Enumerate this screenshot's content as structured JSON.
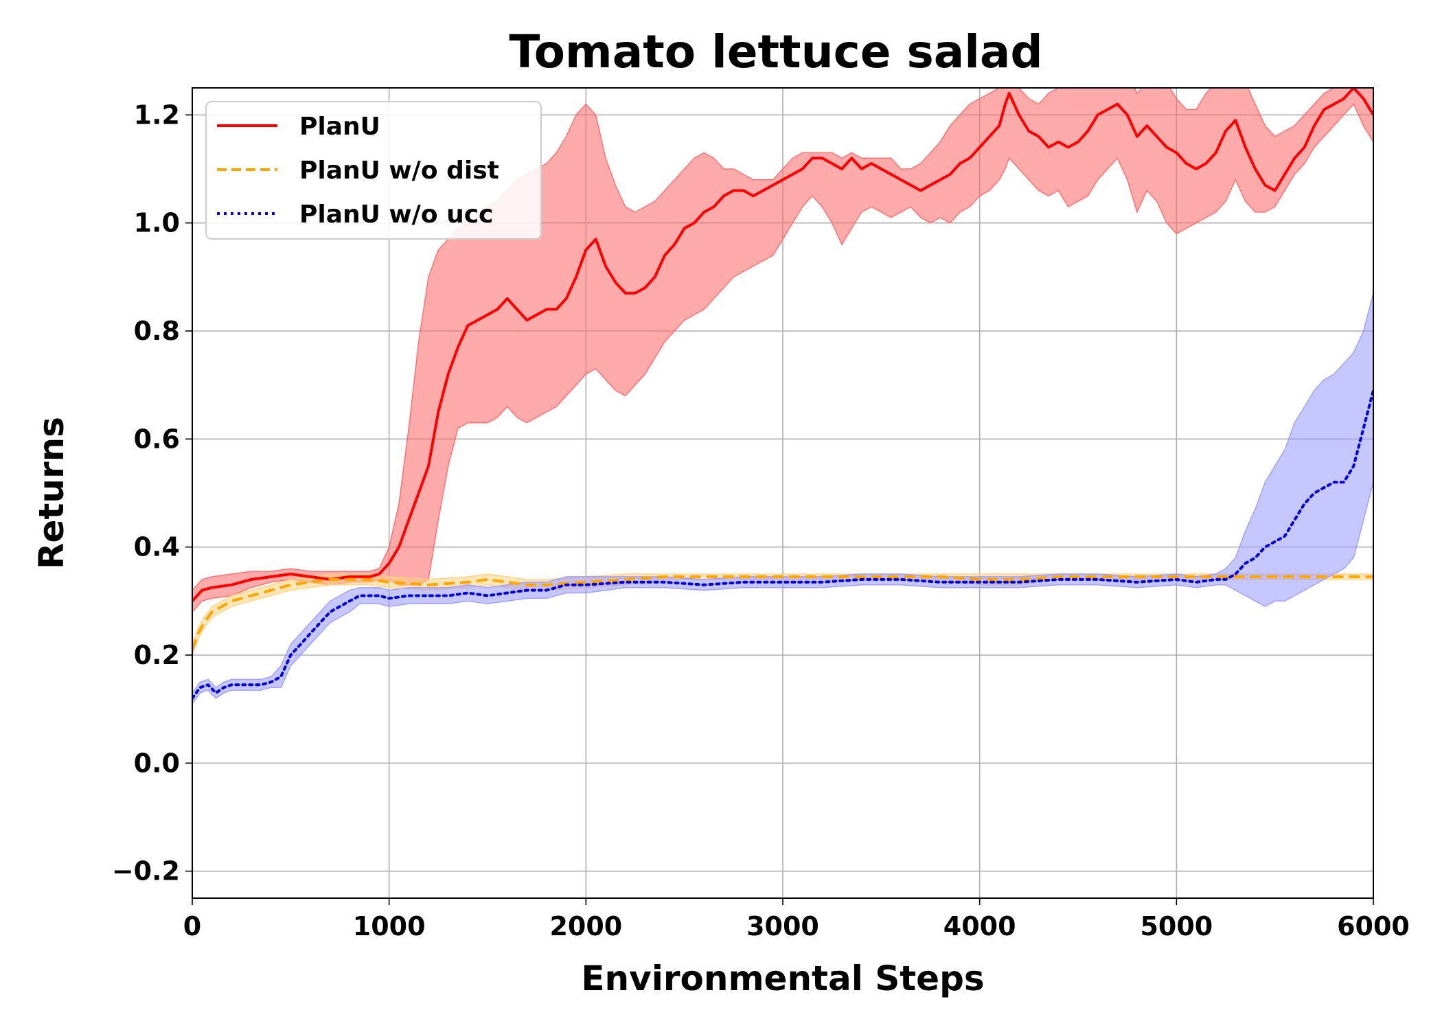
{
  "chart_data": {
    "type": "line",
    "title": "Tomato lettuce salad",
    "xlabel": "Environmental Steps",
    "ylabel": "Returns",
    "xlim": [
      0,
      6000
    ],
    "ylim": [
      -0.25,
      1.25
    ],
    "xticks": [
      0,
      1000,
      2000,
      3000,
      4000,
      5000,
      6000
    ],
    "xtick_labels": [
      "0",
      "1000",
      "2000",
      "3000",
      "4000",
      "5000",
      "6000"
    ],
    "yticks": [
      -0.2,
      0.0,
      0.2,
      0.4,
      0.6,
      0.8,
      1.0,
      1.2
    ],
    "ytick_labels": [
      "−0.2",
      "0.0",
      "0.2",
      "0.4",
      "0.6",
      "0.8",
      "1.0",
      "1.2"
    ],
    "grid": true,
    "legend_position": "top-left",
    "series": [
      {
        "name": "PlanU",
        "color": "#ff0000",
        "fill_color": "#ff6666",
        "style": "solid",
        "x": [
          0,
          50,
          100,
          200,
          300,
          400,
          500,
          600,
          700,
          800,
          900,
          950,
          1000,
          1050,
          1100,
          1150,
          1200,
          1250,
          1300,
          1350,
          1400,
          1450,
          1500,
          1550,
          1600,
          1650,
          1700,
          1750,
          1800,
          1850,
          1900,
          1950,
          2000,
          2050,
          2100,
          2150,
          2200,
          2250,
          2300,
          2350,
          2400,
          2450,
          2500,
          2550,
          2600,
          2650,
          2700,
          2750,
          2800,
          2850,
          2900,
          2950,
          3000,
          3050,
          3100,
          3150,
          3200,
          3250,
          3300,
          3350,
          3400,
          3450,
          3500,
          3550,
          3600,
          3650,
          3700,
          3750,
          3800,
          3850,
          3900,
          3950,
          4000,
          4050,
          4100,
          4130,
          4150,
          4200,
          4250,
          4300,
          4350,
          4400,
          4450,
          4500,
          4550,
          4600,
          4650,
          4700,
          4750,
          4800,
          4850,
          4900,
          4950,
          5000,
          5050,
          5100,
          5150,
          5200,
          5250,
          5300,
          5350,
          5400,
          5450,
          5500,
          5550,
          5600,
          5650,
          5700,
          5750,
          5800,
          5850,
          5900,
          5950,
          6000
        ],
        "y": [
          0.3,
          0.32,
          0.325,
          0.33,
          0.34,
          0.345,
          0.35,
          0.345,
          0.34,
          0.345,
          0.345,
          0.35,
          0.37,
          0.4,
          0.45,
          0.5,
          0.55,
          0.65,
          0.72,
          0.77,
          0.81,
          0.82,
          0.83,
          0.84,
          0.86,
          0.84,
          0.82,
          0.83,
          0.84,
          0.84,
          0.86,
          0.9,
          0.95,
          0.97,
          0.92,
          0.89,
          0.87,
          0.87,
          0.88,
          0.9,
          0.94,
          0.96,
          0.99,
          1.0,
          1.02,
          1.03,
          1.05,
          1.06,
          1.06,
          1.05,
          1.06,
          1.07,
          1.08,
          1.09,
          1.1,
          1.12,
          1.12,
          1.11,
          1.1,
          1.12,
          1.1,
          1.11,
          1.1,
          1.09,
          1.08,
          1.07,
          1.06,
          1.07,
          1.08,
          1.09,
          1.11,
          1.12,
          1.14,
          1.16,
          1.18,
          1.22,
          1.24,
          1.2,
          1.17,
          1.16,
          1.14,
          1.15,
          1.14,
          1.15,
          1.17,
          1.2,
          1.21,
          1.22,
          1.2,
          1.16,
          1.18,
          1.16,
          1.14,
          1.13,
          1.11,
          1.1,
          1.11,
          1.13,
          1.17,
          1.19,
          1.14,
          1.1,
          1.07,
          1.06,
          1.09,
          1.12,
          1.14,
          1.18,
          1.21,
          1.22,
          1.23,
          1.25,
          1.23,
          1.2
        ],
        "upper": [
          0.32,
          0.34,
          0.345,
          0.35,
          0.355,
          0.355,
          0.36,
          0.355,
          0.355,
          0.355,
          0.355,
          0.36,
          0.4,
          0.48,
          0.62,
          0.78,
          0.9,
          0.95,
          0.97,
          0.99,
          1.0,
          1.01,
          1.03,
          1.04,
          1.06,
          1.08,
          1.09,
          1.1,
          1.11,
          1.13,
          1.16,
          1.2,
          1.22,
          1.2,
          1.12,
          1.07,
          1.03,
          1.02,
          1.03,
          1.04,
          1.06,
          1.08,
          1.1,
          1.12,
          1.13,
          1.12,
          1.1,
          1.1,
          1.09,
          1.08,
          1.08,
          1.08,
          1.1,
          1.12,
          1.13,
          1.13,
          1.13,
          1.13,
          1.12,
          1.13,
          1.12,
          1.12,
          1.12,
          1.12,
          1.1,
          1.1,
          1.11,
          1.13,
          1.15,
          1.18,
          1.2,
          1.22,
          1.23,
          1.24,
          1.25,
          1.26,
          1.26,
          1.25,
          1.23,
          1.22,
          1.24,
          1.25,
          1.26,
          1.26,
          1.27,
          1.28,
          1.29,
          1.3,
          1.28,
          1.24,
          1.26,
          1.28,
          1.26,
          1.23,
          1.21,
          1.21,
          1.24,
          1.26,
          1.28,
          1.29,
          1.26,
          1.22,
          1.18,
          1.16,
          1.17,
          1.18,
          1.2,
          1.22,
          1.24,
          1.25,
          1.26,
          1.27,
          1.27,
          1.26
        ],
        "lower": [
          0.28,
          0.3,
          0.305,
          0.31,
          0.325,
          0.335,
          0.34,
          0.335,
          0.33,
          0.335,
          0.335,
          0.34,
          0.34,
          0.33,
          0.33,
          0.33,
          0.34,
          0.45,
          0.55,
          0.62,
          0.63,
          0.63,
          0.63,
          0.64,
          0.66,
          0.64,
          0.63,
          0.64,
          0.65,
          0.66,
          0.68,
          0.7,
          0.72,
          0.73,
          0.71,
          0.69,
          0.68,
          0.7,
          0.72,
          0.75,
          0.78,
          0.8,
          0.82,
          0.83,
          0.84,
          0.86,
          0.88,
          0.9,
          0.91,
          0.92,
          0.93,
          0.94,
          0.97,
          1.0,
          1.03,
          1.05,
          1.03,
          1.0,
          0.96,
          0.99,
          1.02,
          1.03,
          1.02,
          1.01,
          1.02,
          1.03,
          1.01,
          1.0,
          1.01,
          1.0,
          1.02,
          1.03,
          1.05,
          1.06,
          1.08,
          1.1,
          1.12,
          1.1,
          1.08,
          1.06,
          1.05,
          1.06,
          1.03,
          1.04,
          1.05,
          1.08,
          1.1,
          1.12,
          1.08,
          1.02,
          1.06,
          1.04,
          1.0,
          0.98,
          0.99,
          1.0,
          1.01,
          1.02,
          1.04,
          1.08,
          1.04,
          1.02,
          1.02,
          1.03,
          1.06,
          1.09,
          1.11,
          1.14,
          1.16,
          1.18,
          1.2,
          1.22,
          1.18,
          1.15
        ]
      },
      {
        "name": "PlanU w/o dist",
        "color": "#ffa500",
        "fill_color": "#ffd27f",
        "style": "dashed",
        "x": [
          0,
          30,
          60,
          100,
          150,
          200,
          250,
          300,
          400,
          500,
          600,
          700,
          800,
          900,
          1000,
          1200,
          1400,
          1500,
          1600,
          1700,
          1800,
          2000,
          2200,
          2400,
          2600,
          2800,
          3000,
          3200,
          3400,
          3600,
          3800,
          4000,
          4200,
          4400,
          4600,
          4800,
          5000,
          5200,
          5400,
          5600,
          5800,
          6000
        ],
        "y": [
          0.21,
          0.24,
          0.26,
          0.28,
          0.29,
          0.3,
          0.305,
          0.31,
          0.32,
          0.33,
          0.335,
          0.34,
          0.34,
          0.34,
          0.335,
          0.33,
          0.335,
          0.34,
          0.335,
          0.33,
          0.33,
          0.335,
          0.34,
          0.345,
          0.345,
          0.345,
          0.345,
          0.345,
          0.345,
          0.345,
          0.345,
          0.34,
          0.34,
          0.345,
          0.345,
          0.345,
          0.345,
          0.345,
          0.345,
          0.345,
          0.345,
          0.345
        ],
        "upper": [
          0.22,
          0.25,
          0.27,
          0.29,
          0.3,
          0.31,
          0.315,
          0.32,
          0.33,
          0.34,
          0.345,
          0.35,
          0.35,
          0.35,
          0.345,
          0.34,
          0.345,
          0.35,
          0.345,
          0.34,
          0.34,
          0.345,
          0.35,
          0.35,
          0.35,
          0.35,
          0.35,
          0.35,
          0.35,
          0.35,
          0.35,
          0.35,
          0.35,
          0.35,
          0.35,
          0.35,
          0.35,
          0.35,
          0.35,
          0.35,
          0.35,
          0.35
        ],
        "lower": [
          0.2,
          0.23,
          0.25,
          0.27,
          0.28,
          0.29,
          0.295,
          0.3,
          0.31,
          0.32,
          0.325,
          0.33,
          0.33,
          0.33,
          0.325,
          0.32,
          0.325,
          0.33,
          0.325,
          0.32,
          0.32,
          0.325,
          0.33,
          0.34,
          0.34,
          0.34,
          0.34,
          0.34,
          0.34,
          0.34,
          0.34,
          0.33,
          0.33,
          0.34,
          0.34,
          0.34,
          0.34,
          0.34,
          0.34,
          0.34,
          0.34,
          0.34
        ]
      },
      {
        "name": "PlanU w/o ucc",
        "color": "#0000dd",
        "fill_color": "#9999ff",
        "style": "dotted",
        "x": [
          0,
          40,
          80,
          120,
          160,
          200,
          250,
          300,
          350,
          400,
          450,
          500,
          550,
          600,
          650,
          700,
          750,
          800,
          850,
          900,
          950,
          1000,
          1100,
          1200,
          1300,
          1400,
          1500,
          1600,
          1700,
          1800,
          1900,
          2000,
          2200,
          2400,
          2600,
          2800,
          3000,
          3200,
          3400,
          3600,
          3800,
          4000,
          4200,
          4400,
          4600,
          4800,
          5000,
          5100,
          5200,
          5250,
          5300,
          5350,
          5400,
          5450,
          5500,
          5550,
          5600,
          5650,
          5700,
          5750,
          5800,
          5850,
          5900,
          5950,
          6000
        ],
        "y": [
          0.12,
          0.14,
          0.145,
          0.13,
          0.14,
          0.145,
          0.145,
          0.145,
          0.145,
          0.15,
          0.16,
          0.2,
          0.22,
          0.24,
          0.26,
          0.28,
          0.29,
          0.3,
          0.31,
          0.31,
          0.31,
          0.305,
          0.31,
          0.31,
          0.31,
          0.315,
          0.31,
          0.315,
          0.32,
          0.32,
          0.33,
          0.33,
          0.335,
          0.335,
          0.33,
          0.335,
          0.335,
          0.335,
          0.34,
          0.34,
          0.335,
          0.335,
          0.335,
          0.34,
          0.34,
          0.335,
          0.34,
          0.335,
          0.34,
          0.34,
          0.35,
          0.37,
          0.38,
          0.4,
          0.41,
          0.42,
          0.45,
          0.48,
          0.5,
          0.51,
          0.52,
          0.52,
          0.55,
          0.62,
          0.69
        ],
        "upper": [
          0.13,
          0.15,
          0.155,
          0.14,
          0.15,
          0.155,
          0.155,
          0.155,
          0.155,
          0.16,
          0.18,
          0.22,
          0.24,
          0.26,
          0.28,
          0.3,
          0.31,
          0.32,
          0.325,
          0.325,
          0.325,
          0.32,
          0.325,
          0.325,
          0.325,
          0.33,
          0.325,
          0.33,
          0.335,
          0.335,
          0.345,
          0.345,
          0.345,
          0.345,
          0.34,
          0.345,
          0.345,
          0.345,
          0.35,
          0.35,
          0.345,
          0.345,
          0.345,
          0.35,
          0.35,
          0.345,
          0.35,
          0.345,
          0.35,
          0.36,
          0.38,
          0.43,
          0.47,
          0.52,
          0.55,
          0.58,
          0.63,
          0.66,
          0.69,
          0.71,
          0.72,
          0.74,
          0.76,
          0.8,
          0.87
        ],
        "lower": [
          0.11,
          0.13,
          0.135,
          0.12,
          0.13,
          0.135,
          0.135,
          0.135,
          0.135,
          0.14,
          0.14,
          0.18,
          0.2,
          0.22,
          0.24,
          0.26,
          0.27,
          0.28,
          0.295,
          0.295,
          0.295,
          0.29,
          0.295,
          0.295,
          0.295,
          0.3,
          0.295,
          0.3,
          0.305,
          0.305,
          0.315,
          0.315,
          0.325,
          0.325,
          0.32,
          0.325,
          0.325,
          0.325,
          0.33,
          0.33,
          0.325,
          0.325,
          0.325,
          0.33,
          0.33,
          0.325,
          0.33,
          0.325,
          0.33,
          0.33,
          0.32,
          0.31,
          0.3,
          0.29,
          0.3,
          0.3,
          0.31,
          0.32,
          0.33,
          0.34,
          0.35,
          0.36,
          0.38,
          0.45,
          0.52
        ]
      }
    ]
  }
}
